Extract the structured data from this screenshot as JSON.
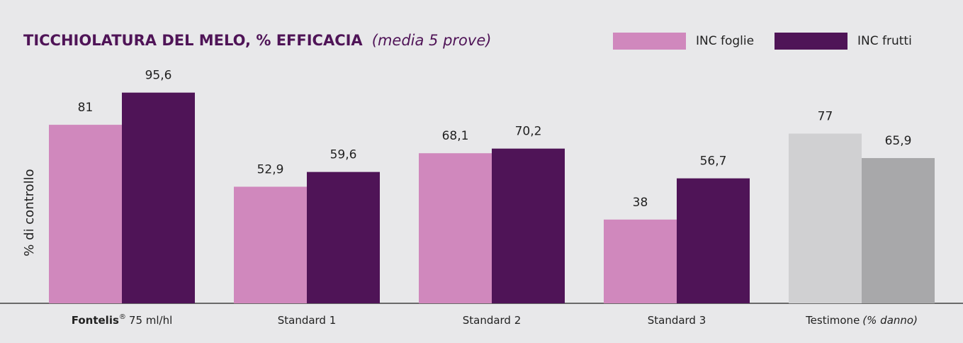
{
  "chart_data": {
    "type": "bar",
    "title": "TICCHIOLATURA DEL MELO, % EFFICACIA",
    "subtitle": "(media 5 prove)",
    "y_label": "% di controllo",
    "categories": [
      [
        {
          "text": "Fontelis",
          "style": "bold"
        },
        {
          "text": "®",
          "style": "sup"
        },
        {
          "text": "75 ml/hl"
        }
      ],
      [
        {
          "text": "Standard 1"
        }
      ],
      [
        {
          "text": "Standard 2"
        }
      ],
      [
        {
          "text": "Standard 3"
        }
      ],
      [
        {
          "text": "Testimone"
        },
        {
          "text": "(% danno)",
          "style": "italic"
        }
      ]
    ],
    "series": [
      {
        "name": "INC foglie",
        "color": "#d088bd",
        "point_colors": [
          "#d088bd",
          "#d088bd",
          "#d088bd",
          "#d088bd",
          "#d0d0d2"
        ],
        "values": [
          81,
          52.9,
          68.1,
          38,
          77
        ],
        "value_labels": [
          "81",
          "52,9",
          "68,1",
          "38",
          "77"
        ]
      },
      {
        "name": "INC frutti",
        "color": "#4f1457",
        "point_colors": [
          "#4f1457",
          "#4f1457",
          "#4f1457",
          "#4f1457",
          "#a8a8aa"
        ],
        "values": [
          95.6,
          59.6,
          70.2,
          56.7,
          65.9
        ],
        "value_labels": [
          "95,6",
          "59,6",
          "70,2",
          "56,7",
          "65,9"
        ]
      }
    ],
    "ylim": [
      0,
      100
    ],
    "legend": "top-right"
  }
}
